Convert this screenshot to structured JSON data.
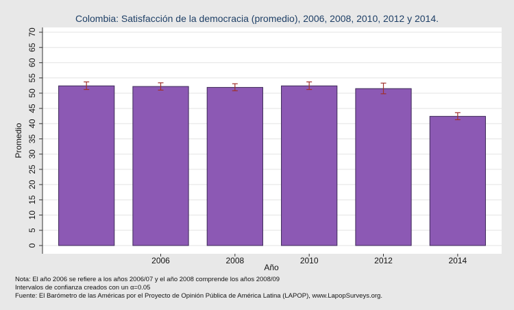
{
  "chart_data": {
    "type": "bar",
    "title": "Colombia: Satisfacción de la democracia (promedio), 2006, 2008, 2010, 2012 y 2014.",
    "xlabel": "Año",
    "ylabel": "Promedio",
    "ylim": [
      0,
      70
    ],
    "yticks": [
      0,
      5,
      10,
      15,
      20,
      25,
      30,
      35,
      40,
      45,
      50,
      55,
      60,
      65,
      70
    ],
    "categories": [
      "",
      "2006",
      "2008",
      "2010",
      "2012",
      "2014"
    ],
    "values": [
      52.4,
      52.2,
      51.9,
      52.4,
      51.5,
      42.4
    ],
    "ci_low": [
      51.2,
      51.0,
      50.8,
      51.2,
      49.8,
      41.3
    ],
    "ci_high": [
      53.7,
      53.4,
      53.1,
      53.7,
      53.3,
      43.6
    ],
    "grid": true,
    "colors": {
      "bar": "#8c59b4",
      "bar_edge": "#3d2a57",
      "error_bar": "#a0302c",
      "plot_bg": "#ffffff",
      "outer_bg": "#e8e8e8",
      "grid": "#e3e3e3"
    }
  },
  "notes": {
    "line1": "Nota: El año 2006 se refiere a los años 2006/07 y el año 2008 comprende los años 2008/09",
    "line2": "Intervalos de confianza creados con un α=0.05",
    "line3": "Fuente: El Barómetro de las Américas por el Proyecto de Opinión Pública de América Latina (LAPOP), www.LapopSurveys.org."
  }
}
